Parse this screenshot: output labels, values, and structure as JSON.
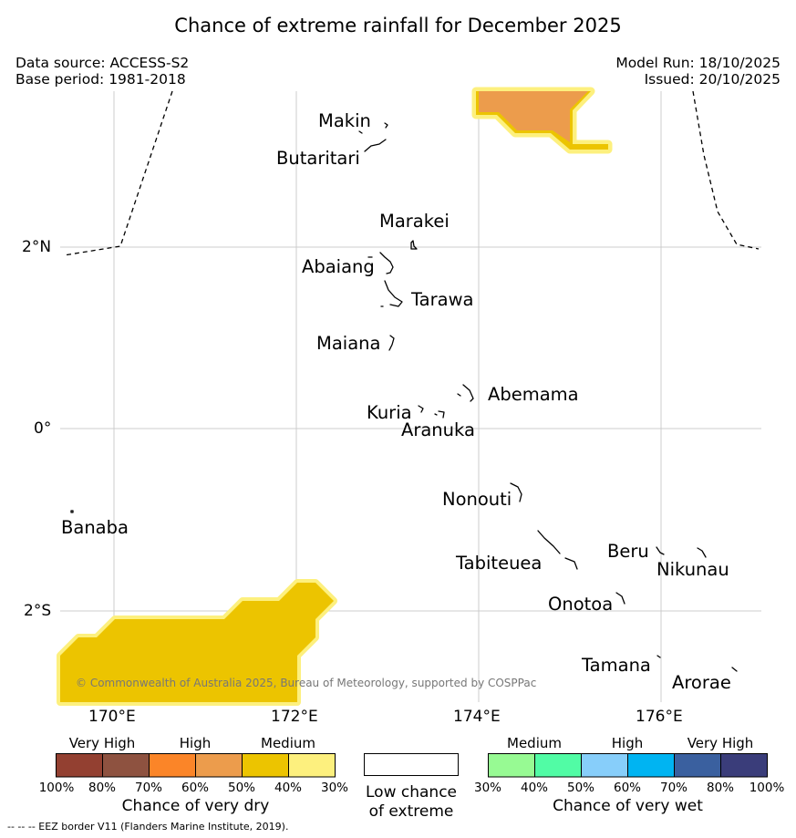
{
  "header": {
    "title": "Chance of extreme rainfall for December 2025",
    "data_source": "Data source: ACCESS-S2",
    "base_period": "Base period: 1981-2018",
    "model_run": "Model Run: 18/10/2025",
    "issued": "Issued: 20/10/2025"
  },
  "map": {
    "lat_labels": [
      "2°N",
      "0°",
      "2°S"
    ],
    "lon_labels": [
      "170°E",
      "172°E",
      "174°E",
      "176°E"
    ],
    "copyright": "© Commonwealth of Australia 2025, Bureau of Meteorology, supported by COSPPac",
    "places": [
      "Makin",
      "Butaritari",
      "Marakei",
      "Abaiang",
      "Tarawa",
      "Maiana",
      "Abemama",
      "Kuria",
      "Aranuka",
      "Nonouti",
      "Banaba",
      "Tabiteuea",
      "Beru",
      "Nikunau",
      "Onotoa",
      "Tamana",
      "Arorae"
    ],
    "colors": {
      "dry_medium": "#ecc400",
      "dry_medium_edge": "#fdf07e",
      "dry_high": "#ec9c4c",
      "grid": "#cccccc"
    }
  },
  "legend": {
    "dry": {
      "categories": [
        "Very High",
        "High",
        "Medium"
      ],
      "ticks": [
        "100%",
        "80%",
        "70%",
        "60%",
        "50%",
        "40%",
        "30%"
      ],
      "colors": [
        "#934031",
        "#8e5240",
        "#fb8528",
        "#ec9c4c",
        "#ecc400",
        "#fdf07e"
      ],
      "title": "Chance of very dry"
    },
    "low": {
      "line1": "Low chance",
      "line2": "of extreme",
      "color": "#ffffff"
    },
    "wet": {
      "categories": [
        "Medium",
        "High",
        "Very High"
      ],
      "ticks": [
        "30%",
        "40%",
        "50%",
        "60%",
        "70%",
        "80%",
        "100%"
      ],
      "colors": [
        "#97fa93",
        "#51fca5",
        "#87cefa",
        "#00b4f2",
        "#3a609f",
        "#3a3d7a"
      ],
      "title": "Chance of very wet"
    }
  },
  "footer": "--  --  -- EEZ border V11 (Flanders Marine Institute, 2019)."
}
